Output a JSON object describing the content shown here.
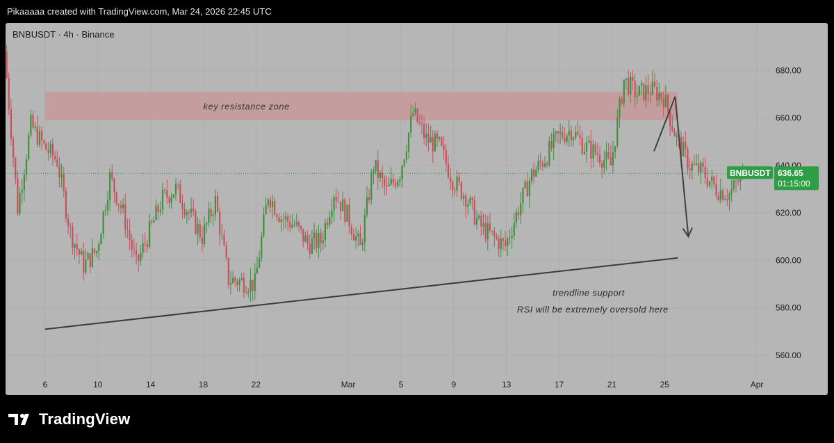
{
  "attribution": "Pikaaaaa created with TradingView.com, Mar 24, 2026 22:45 UTC",
  "brand": "TradingView",
  "colors": {
    "panel": "#b6b6b6",
    "up": "#3f8f3f",
    "down": "#c9505a",
    "zone": "#c79a9a",
    "badge": "#2e9e44",
    "line": "#3a3a3a"
  },
  "chart_data": {
    "type": "candlestick",
    "symbol_label": "BNBUSDT · 4h · Binance",
    "price_label": "BNBUSDT",
    "last_price": 636.65,
    "last_price_text": "636.65",
    "countdown": "01:15:00",
    "ylim": [
      550,
      700
    ],
    "y_ticks": [
      {
        "value": 680,
        "label": "680.00"
      },
      {
        "value": 660,
        "label": "660.00"
      },
      {
        "value": 640,
        "label": "640.00"
      },
      {
        "value": 620,
        "label": "620.00"
      },
      {
        "value": 600,
        "label": "600.00"
      },
      {
        "value": 580,
        "label": "580.00"
      },
      {
        "value": 560,
        "label": "560.00"
      }
    ],
    "x_ticks": [
      {
        "day": 0,
        "label": "6"
      },
      {
        "day": 4,
        "label": "10"
      },
      {
        "day": 8,
        "label": "14"
      },
      {
        "day": 12,
        "label": "18"
      },
      {
        "day": 16,
        "label": "22"
      },
      {
        "day": 23,
        "label": "Mar"
      },
      {
        "day": 27,
        "label": "5"
      },
      {
        "day": 31,
        "label": "9"
      },
      {
        "day": 35,
        "label": "13"
      },
      {
        "day": 39,
        "label": "17"
      },
      {
        "day": 43,
        "label": "21"
      },
      {
        "day": 47,
        "label": "25"
      },
      {
        "day": 54,
        "label": "Apr"
      }
    ],
    "x_range_days": [
      -3,
      55
    ],
    "daily_closes": [
      688,
      622,
      657,
      648,
      642,
      612,
      598,
      604,
      635,
      620,
      598,
      612,
      626,
      630,
      620,
      610,
      625,
      592,
      591,
      590,
      628,
      618,
      615,
      607,
      608,
      629,
      619,
      605,
      640,
      629,
      637,
      662,
      651,
      648,
      634,
      627,
      615,
      610,
      606,
      622,
      636,
      643,
      652,
      655,
      648,
      645,
      640,
      676,
      670,
      672,
      669,
      651,
      640,
      637,
      630,
      628,
      636
    ],
    "zone": {
      "low": 659,
      "high": 671,
      "from_day": 0,
      "to_day": 48,
      "label": "key resistance zone"
    },
    "trendline": {
      "from_day": 0,
      "from_price": 571,
      "to_day": 48,
      "to_price": 601,
      "label": "trendline support"
    },
    "projection": {
      "points": [
        [
          46.2,
          646
        ],
        [
          47.8,
          669
        ],
        [
          48.8,
          610
        ]
      ]
    },
    "annotations": [
      "trendline support",
      "RSI will be extremely oversold here"
    ]
  }
}
